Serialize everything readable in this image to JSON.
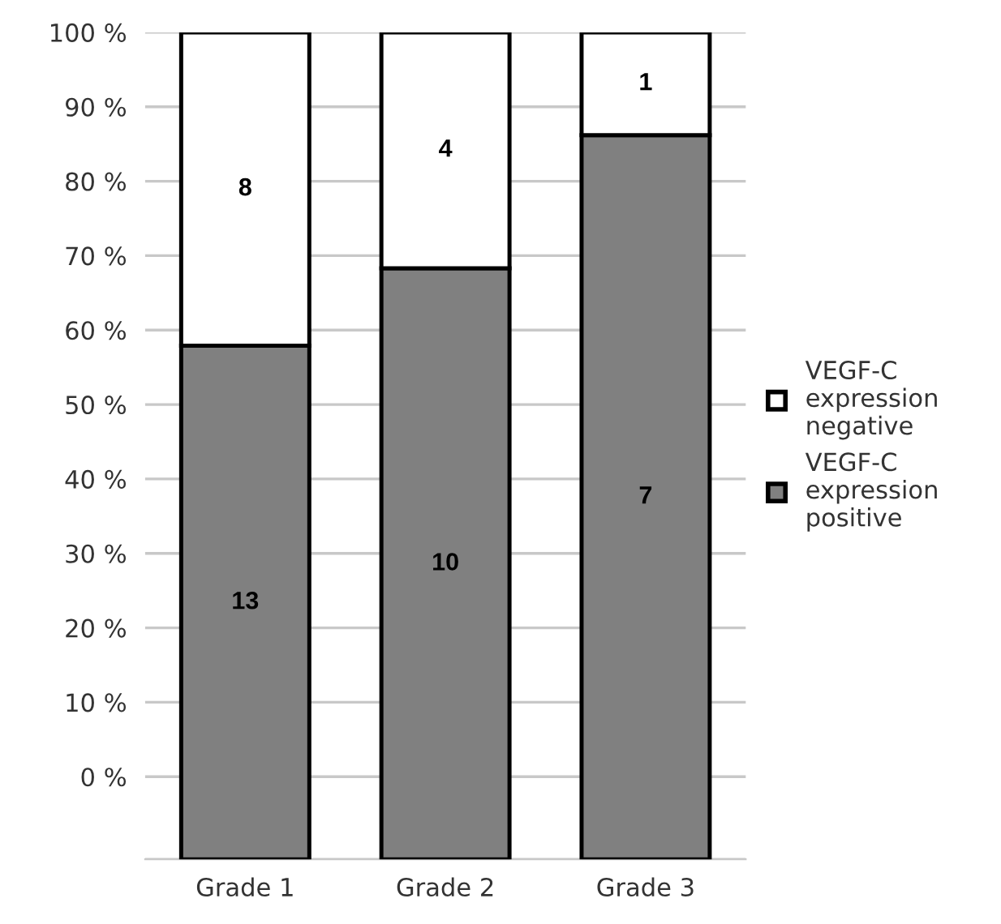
{
  "chart_data": {
    "type": "bar",
    "categories": [
      "Grade 1",
      "Grade 2",
      "Grade 3"
    ],
    "series": [
      {
        "name": "VEGF-C expression positive",
        "color": "#808080",
        "base": [
          -11.1,
          -11.1,
          -11.1
        ],
        "values": [
          69.0,
          79.4,
          97.3
        ]
      },
      {
        "name": "VEGF-C expression negative",
        "color": "#ffffff",
        "base": [
          57.9,
          68.3,
          86.2
        ],
        "values": [
          42.1,
          31.7,
          13.8
        ]
      }
    ],
    "annotations": [
      "13",
      "8",
      "10",
      "4",
      "7",
      "1"
    ],
    "ylim": [
      -11.1,
      100
    ],
    "yticks": [
      {
        "value": -11.1,
        "label": null
      },
      {
        "value": 0,
        "label": "0 %"
      },
      {
        "value": 10,
        "label": "10 %"
      },
      {
        "value": 20,
        "label": "20 %"
      },
      {
        "value": 30,
        "label": "30 %"
      },
      {
        "value": 40,
        "label": "40 %"
      },
      {
        "value": 50,
        "label": "50 %"
      },
      {
        "value": 60,
        "label": "60 %"
      },
      {
        "value": 70,
        "label": "70 %"
      },
      {
        "value": 80,
        "label": "80 %"
      },
      {
        "value": 90,
        "label": "90 %"
      },
      {
        "value": 100,
        "label": "100 %"
      }
    ],
    "grid": "y",
    "legend": "right"
  }
}
